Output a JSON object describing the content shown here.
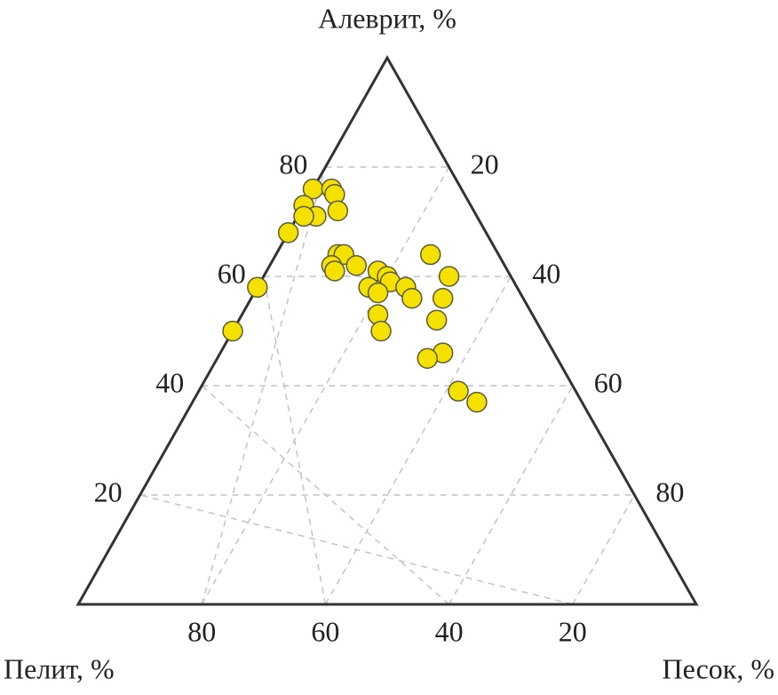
{
  "chart_data": {
    "type": "ternary",
    "top_label": "Алеврит, %",
    "left_label": "Пелит, %",
    "right_label": "Песок, %",
    "silt_ticks": [
      20,
      40,
      60,
      80
    ],
    "sand_ticks": [
      20,
      40,
      60,
      80
    ],
    "pelite_ticks": [
      20,
      40,
      60,
      80
    ],
    "grid": true,
    "color": "#f5e100",
    "points": [
      {
        "silt": 76,
        "sand": 0
      },
      {
        "silt": 76,
        "sand": 3
      },
      {
        "silt": 75,
        "sand": 4
      },
      {
        "silt": 73,
        "sand": 0
      },
      {
        "silt": 71,
        "sand": 3
      },
      {
        "silt": 72,
        "sand": 6
      },
      {
        "silt": 71,
        "sand": 1
      },
      {
        "silt": 68,
        "sand": 0
      },
      {
        "silt": 58,
        "sand": 0
      },
      {
        "silt": 50,
        "sand": 0
      },
      {
        "silt": 64,
        "sand": 10
      },
      {
        "silt": 64,
        "sand": 11
      },
      {
        "silt": 62,
        "sand": 10
      },
      {
        "silt": 61,
        "sand": 11
      },
      {
        "silt": 62,
        "sand": 14
      },
      {
        "silt": 61,
        "sand": 18
      },
      {
        "silt": 60,
        "sand": 20
      },
      {
        "silt": 59,
        "sand": 21
      },
      {
        "silt": 58,
        "sand": 18
      },
      {
        "silt": 57,
        "sand": 20
      },
      {
        "silt": 58,
        "sand": 24
      },
      {
        "silt": 56,
        "sand": 26
      },
      {
        "silt": 53,
        "sand": 22
      },
      {
        "silt": 50,
        "sand": 24
      },
      {
        "silt": 64,
        "sand": 25
      },
      {
        "silt": 60,
        "sand": 30
      },
      {
        "silt": 56,
        "sand": 31
      },
      {
        "silt": 52,
        "sand": 32
      },
      {
        "silt": 46,
        "sand": 36
      },
      {
        "silt": 45,
        "sand": 34
      },
      {
        "silt": 39,
        "sand": 42
      },
      {
        "silt": 37,
        "sand": 46
      }
    ]
  }
}
